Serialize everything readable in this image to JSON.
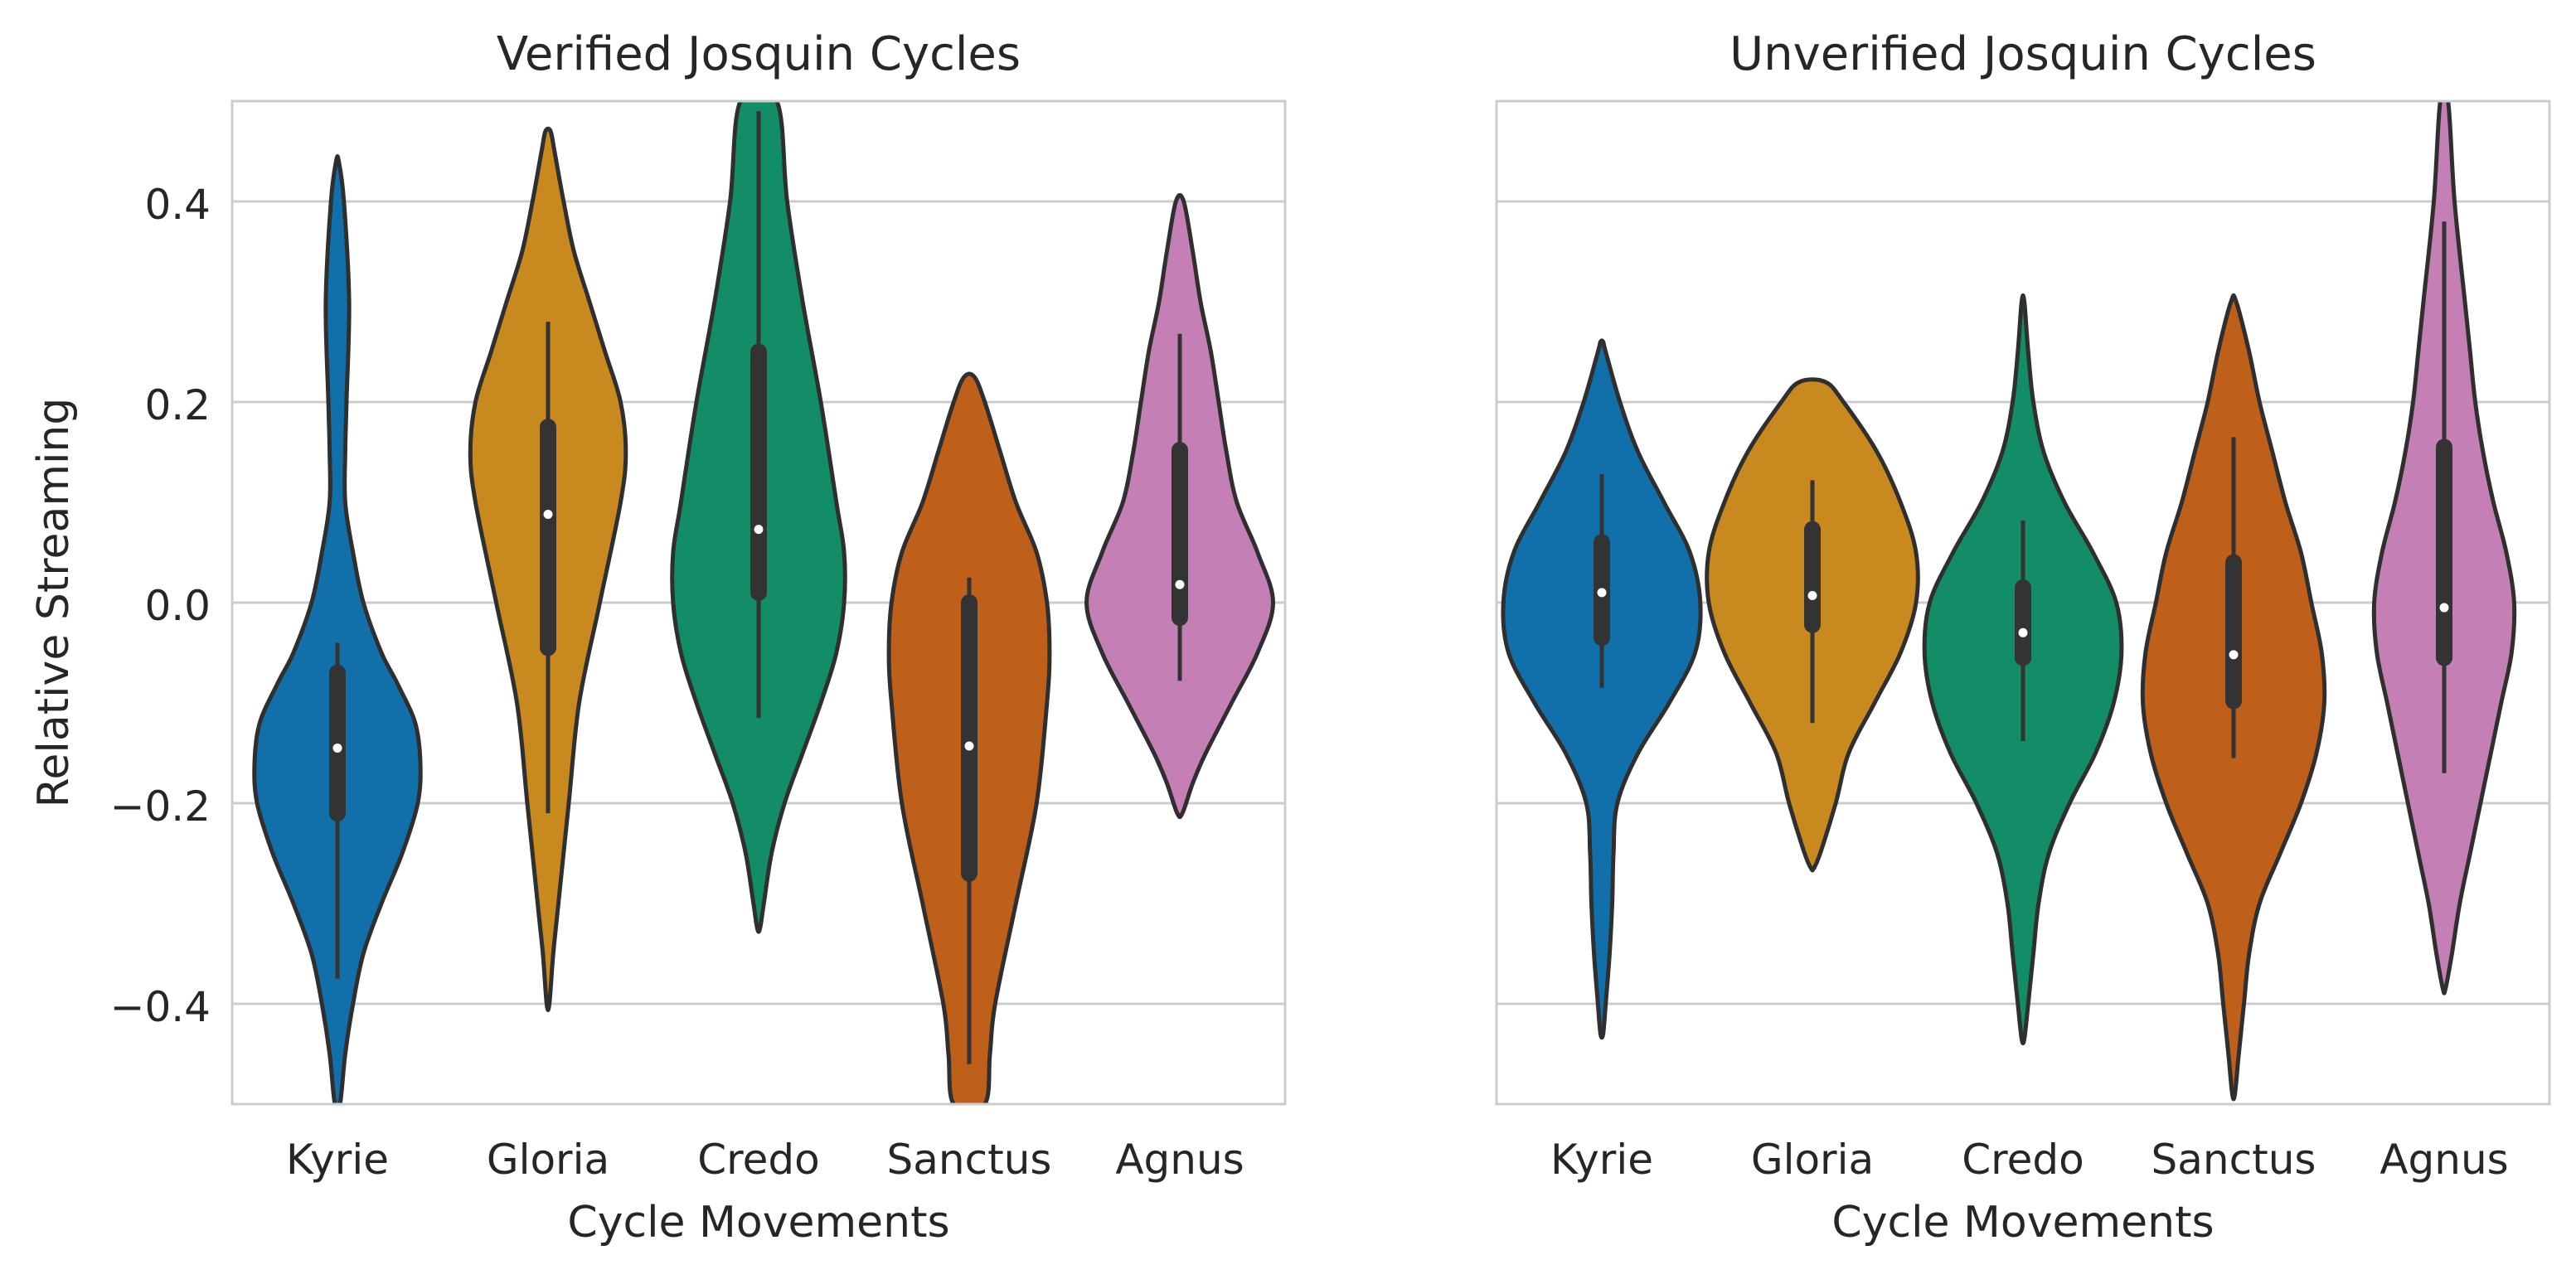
{
  "chart_data": [
    {
      "type": "violin",
      "title": "Verified Josquin Cycles",
      "xlabel": "Cycle Movements",
      "ylabel": "Relative Streaming",
      "ylim": [
        -0.5,
        0.5
      ],
      "yticks": [
        -0.4,
        -0.2,
        0.0,
        0.2,
        0.4
      ],
      "ytick_labels": [
        "−0.4",
        "−0.2",
        "0.0",
        "0.2",
        "0.4"
      ],
      "grid": "horizontal",
      "categories": [
        "Kyrie",
        "Gloria",
        "Credo",
        "Sanctus",
        "Agnus"
      ],
      "series": [
        {
          "color": "#1170aa",
          "median": -0.145,
          "q1": -0.21,
          "q3": -0.07,
          "whisker_low": -0.375,
          "whisker_high": -0.04,
          "profile": [
            [
              -0.5,
              0.01
            ],
            [
              -0.45,
              0.03
            ],
            [
              -0.4,
              0.06
            ],
            [
              -0.35,
              0.1
            ],
            [
              -0.3,
              0.17
            ],
            [
              -0.25,
              0.25
            ],
            [
              -0.2,
              0.31
            ],
            [
              -0.16,
              0.32
            ],
            [
              -0.12,
              0.3
            ],
            [
              -0.08,
              0.23
            ],
            [
              -0.05,
              0.17
            ],
            [
              0.0,
              0.1
            ],
            [
              0.05,
              0.06
            ],
            [
              0.1,
              0.03
            ],
            [
              0.15,
              0.03
            ],
            [
              0.2,
              0.035
            ],
            [
              0.3,
              0.045
            ],
            [
              0.4,
              0.025
            ],
            [
              0.44,
              0.005
            ]
          ]
        },
        {
          "color": "#c8891e",
          "median": 0.088,
          "q1": -0.045,
          "q3": 0.175,
          "whisker_low": -0.21,
          "whisker_high": 0.28,
          "profile": [
            [
              -0.4,
              0.005
            ],
            [
              -0.35,
              0.02
            ],
            [
              -0.3,
              0.04
            ],
            [
              -0.2,
              0.08
            ],
            [
              -0.1,
              0.12
            ],
            [
              0.0,
              0.2
            ],
            [
              0.1,
              0.28
            ],
            [
              0.15,
              0.3
            ],
            [
              0.2,
              0.28
            ],
            [
              0.25,
              0.22
            ],
            [
              0.3,
              0.16
            ],
            [
              0.35,
              0.1
            ],
            [
              0.4,
              0.06
            ],
            [
              0.45,
              0.025
            ],
            [
              0.47,
              0.01
            ]
          ]
        },
        {
          "color": "#138c68",
          "median": 0.073,
          "q1": 0.01,
          "q3": 0.25,
          "whisker_low": -0.115,
          "whisker_high": 0.49,
          "profile": [
            [
              -0.325,
              0.005
            ],
            [
              -0.3,
              0.02
            ],
            [
              -0.25,
              0.05
            ],
            [
              -0.2,
              0.1
            ],
            [
              -0.15,
              0.17
            ],
            [
              -0.1,
              0.24
            ],
            [
              -0.05,
              0.3
            ],
            [
              0.0,
              0.33
            ],
            [
              0.05,
              0.33
            ],
            [
              0.1,
              0.3
            ],
            [
              0.2,
              0.24
            ],
            [
              0.3,
              0.17
            ],
            [
              0.4,
              0.11
            ],
            [
              0.5,
              0.07
            ]
          ]
        },
        {
          "color": "#be5f1a",
          "median": -0.143,
          "q1": -0.27,
          "q3": 0.0,
          "whisker_low": -0.46,
          "whisker_high": 0.025,
          "profile": [
            [
              -0.5,
              0.06
            ],
            [
              -0.45,
              0.08
            ],
            [
              -0.4,
              0.1
            ],
            [
              -0.3,
              0.18
            ],
            [
              -0.2,
              0.26
            ],
            [
              -0.1,
              0.3
            ],
            [
              -0.05,
              0.31
            ],
            [
              0.0,
              0.3
            ],
            [
              0.05,
              0.26
            ],
            [
              0.1,
              0.18
            ],
            [
              0.15,
              0.12
            ],
            [
              0.2,
              0.06
            ],
            [
              0.225,
              0.02
            ]
          ]
        },
        {
          "color": "#c47fb4",
          "median": 0.018,
          "q1": -0.015,
          "q3": 0.152,
          "whisker_low": -0.078,
          "whisker_high": 0.268,
          "profile": [
            [
              -0.21,
              0.01
            ],
            [
              -0.18,
              0.05
            ],
            [
              -0.15,
              0.1
            ],
            [
              -0.1,
              0.2
            ],
            [
              -0.05,
              0.3
            ],
            [
              0.0,
              0.36
            ],
            [
              0.05,
              0.3
            ],
            [
              0.1,
              0.22
            ],
            [
              0.15,
              0.18
            ],
            [
              0.2,
              0.15
            ],
            [
              0.25,
              0.12
            ],
            [
              0.3,
              0.08
            ],
            [
              0.35,
              0.05
            ],
            [
              0.4,
              0.015
            ]
          ]
        }
      ]
    },
    {
      "type": "violin",
      "title": "Unverified Josquin Cycles",
      "xlabel": "Cycle Movements",
      "ylim": [
        -0.5,
        0.5
      ],
      "yticks": [
        -0.4,
        -0.2,
        0.0,
        0.2,
        0.4
      ],
      "grid": "horizontal",
      "categories": [
        "Kyrie",
        "Gloria",
        "Credo",
        "Sanctus",
        "Agnus"
      ],
      "series": [
        {
          "color": "#1170aa",
          "median": 0.01,
          "q1": -0.035,
          "q3": 0.06,
          "whisker_low": -0.085,
          "whisker_high": 0.128,
          "profile": [
            [
              -0.43,
              0.005
            ],
            [
              -0.4,
              0.015
            ],
            [
              -0.35,
              0.03
            ],
            [
              -0.3,
              0.04
            ],
            [
              -0.25,
              0.045
            ],
            [
              -0.2,
              0.06
            ],
            [
              -0.15,
              0.14
            ],
            [
              -0.1,
              0.26
            ],
            [
              -0.05,
              0.36
            ],
            [
              0.0,
              0.38
            ],
            [
              0.05,
              0.34
            ],
            [
              0.1,
              0.24
            ],
            [
              0.15,
              0.14
            ],
            [
              0.2,
              0.07
            ],
            [
              0.25,
              0.015
            ],
            [
              0.26,
              0.005
            ]
          ]
        },
        {
          "color": "#c8891e",
          "median": 0.007,
          "q1": -0.022,
          "q3": 0.073,
          "whisker_low": -0.12,
          "whisker_high": 0.122,
          "profile": [
            [
              -0.265,
              0.005
            ],
            [
              -0.25,
              0.03
            ],
            [
              -0.2,
              0.09
            ],
            [
              -0.15,
              0.14
            ],
            [
              -0.1,
              0.24
            ],
            [
              -0.05,
              0.34
            ],
            [
              0.0,
              0.4
            ],
            [
              0.05,
              0.4
            ],
            [
              0.1,
              0.34
            ],
            [
              0.15,
              0.25
            ],
            [
              0.2,
              0.12
            ],
            [
              0.22,
              0.05
            ]
          ]
        },
        {
          "color": "#138c68",
          "median": -0.03,
          "q1": -0.055,
          "q3": 0.015,
          "whisker_low": -0.138,
          "whisker_high": 0.082,
          "profile": [
            [
              -0.435,
              0.005
            ],
            [
              -0.4,
              0.02
            ],
            [
              -0.35,
              0.04
            ],
            [
              -0.3,
              0.06
            ],
            [
              -0.25,
              0.1
            ],
            [
              -0.2,
              0.18
            ],
            [
              -0.15,
              0.28
            ],
            [
              -0.1,
              0.35
            ],
            [
              -0.05,
              0.38
            ],
            [
              0.0,
              0.36
            ],
            [
              0.05,
              0.27
            ],
            [
              0.1,
              0.16
            ],
            [
              0.15,
              0.08
            ],
            [
              0.2,
              0.04
            ],
            [
              0.25,
              0.02
            ],
            [
              0.3,
              0.005
            ]
          ]
        },
        {
          "color": "#be5f1a",
          "median": -0.052,
          "q1": -0.098,
          "q3": 0.04,
          "whisker_low": -0.155,
          "whisker_high": 0.165,
          "profile": [
            [
              -0.49,
              0.005
            ],
            [
              -0.45,
              0.02
            ],
            [
              -0.4,
              0.04
            ],
            [
              -0.35,
              0.06
            ],
            [
              -0.3,
              0.1
            ],
            [
              -0.25,
              0.18
            ],
            [
              -0.2,
              0.26
            ],
            [
              -0.15,
              0.32
            ],
            [
              -0.1,
              0.35
            ],
            [
              -0.05,
              0.34
            ],
            [
              0.0,
              0.3
            ],
            [
              0.05,
              0.26
            ],
            [
              0.1,
              0.2
            ],
            [
              0.15,
              0.15
            ],
            [
              0.2,
              0.1
            ],
            [
              0.25,
              0.06
            ],
            [
              0.3,
              0.01
            ]
          ]
        },
        {
          "color": "#c47fb4",
          "median": -0.005,
          "q1": -0.055,
          "q3": 0.155,
          "whisker_low": -0.17,
          "whisker_high": 0.38,
          "profile": [
            [
              -0.385,
              0.005
            ],
            [
              -0.35,
              0.03
            ],
            [
              -0.3,
              0.06
            ],
            [
              -0.25,
              0.1
            ],
            [
              -0.2,
              0.14
            ],
            [
              -0.15,
              0.18
            ],
            [
              -0.1,
              0.22
            ],
            [
              -0.05,
              0.26
            ],
            [
              0.0,
              0.27
            ],
            [
              0.05,
              0.24
            ],
            [
              0.1,
              0.19
            ],
            [
              0.15,
              0.15
            ],
            [
              0.2,
              0.12
            ],
            [
              0.25,
              0.1
            ],
            [
              0.3,
              0.08
            ],
            [
              0.4,
              0.04
            ],
            [
              0.5,
              0.015
            ]
          ]
        }
      ]
    }
  ]
}
